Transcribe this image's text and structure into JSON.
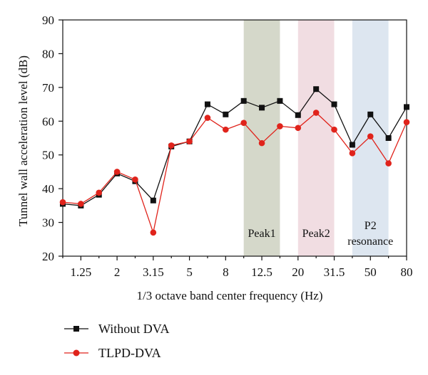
{
  "chart_data": {
    "type": "line",
    "xlabel": "1/3 octave band center frequency (Hz)",
    "ylabel": "Tunnel wall acceleration level (dB)",
    "ylim": [
      20,
      90
    ],
    "yticks": [
      20,
      30,
      40,
      50,
      60,
      70,
      80,
      90
    ],
    "xtick_labels": [
      "1.25",
      "2",
      "3.15",
      "5",
      "8",
      "12.5",
      "20",
      "31.5",
      "50",
      "80"
    ],
    "bands": [
      {
        "label": "Peak1",
        "from_band": 10,
        "to_band": 12,
        "color": "#d5d8ca"
      },
      {
        "label": "Peak2",
        "from_band": 13,
        "to_band": 15,
        "color": "#f1dde2"
      },
      {
        "label_lines": [
          "P2",
          "resonance"
        ],
        "from_band": 16,
        "to_band": 18,
        "color": "#dde6f0"
      }
    ],
    "series": [
      {
        "name": "Without DVA",
        "color": "#111111",
        "marker": "square",
        "values": [
          35.5,
          35,
          38.2,
          44.5,
          42.2,
          36.5,
          52.5,
          54,
          65,
          62,
          66,
          64,
          66,
          61.8,
          69.5,
          65,
          53,
          62,
          55,
          64.2
        ]
      },
      {
        "name": "TLPD-DVA",
        "color": "#e0231b",
        "marker": "circle",
        "values": [
          36,
          35.5,
          38.8,
          45,
          42.7,
          27,
          52.8,
          54,
          61,
          57.5,
          59.5,
          53.5,
          58.5,
          58,
          62.5,
          57.5,
          50.5,
          55.5,
          47.5,
          59.7
        ]
      }
    ],
    "legend_position": "bottom-left"
  }
}
